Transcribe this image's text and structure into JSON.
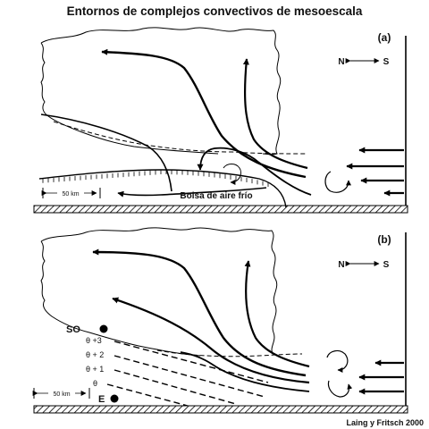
{
  "title": "Entornos de complejos convectivos de mesoescala",
  "credit": "Laing y Fritsch 2000",
  "panel_a": {
    "label": "(a)",
    "compass": {
      "north": "N",
      "south": "S"
    },
    "scale_label": "50 km",
    "cold_pool_label": "Bolsa de aire frío"
  },
  "panel_b": {
    "label": "(b)",
    "compass": {
      "north": "N",
      "south": "S"
    },
    "scale_label": "50 km",
    "so_label": "SO",
    "e_label": "E",
    "theta_labels": [
      "θ +3",
      "θ + 2",
      "θ + 1",
      "θ"
    ]
  }
}
